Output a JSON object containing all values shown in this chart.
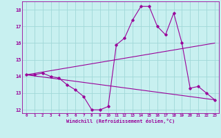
{
  "xlabel": "Windchill (Refroidissement éolien,°C)",
  "bg_color": "#c8f0f0",
  "grid_color": "#a0d8d8",
  "line_color": "#990099",
  "xlim": [
    -0.5,
    23.5
  ],
  "ylim": [
    11.8,
    18.5
  ],
  "xticks": [
    0,
    1,
    2,
    3,
    4,
    5,
    6,
    7,
    8,
    9,
    10,
    11,
    12,
    13,
    14,
    15,
    16,
    17,
    18,
    19,
    20,
    21,
    22,
    23
  ],
  "yticks": [
    12,
    13,
    14,
    15,
    16,
    17,
    18
  ],
  "line1_x": [
    0,
    1,
    2,
    3,
    4,
    5,
    6,
    7,
    8,
    9,
    10,
    11,
    12,
    13,
    14,
    15,
    16,
    17,
    18,
    19,
    20,
    21,
    22,
    23
  ],
  "line1_y": [
    14.1,
    14.1,
    14.2,
    14.0,
    13.9,
    13.5,
    13.2,
    12.8,
    12.0,
    12.0,
    12.2,
    15.9,
    16.3,
    17.4,
    18.2,
    18.2,
    17.0,
    16.5,
    17.8,
    16.0,
    13.3,
    13.4,
    13.0,
    12.6
  ],
  "line2_x": [
    0,
    23
  ],
  "line2_y": [
    14.1,
    16.0
  ],
  "line3_x": [
    0,
    23
  ],
  "line3_y": [
    14.1,
    12.6
  ]
}
